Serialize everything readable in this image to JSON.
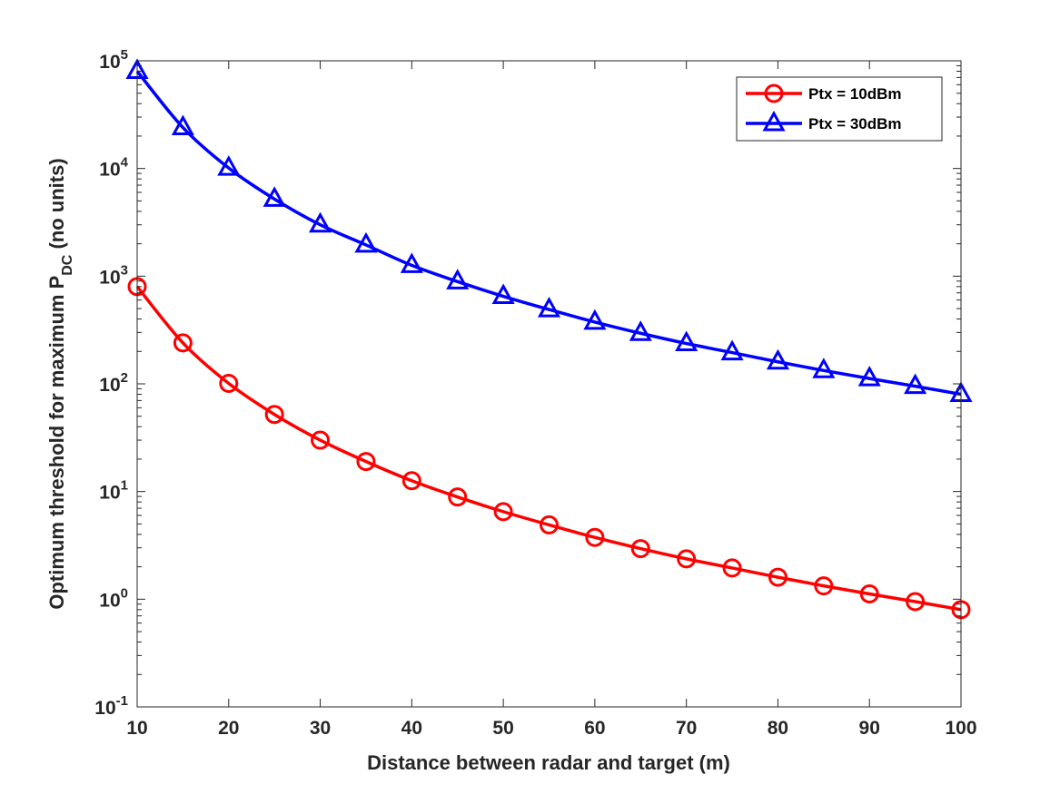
{
  "chart_data": {
    "type": "line",
    "title": "",
    "xlabel": "Distance between radar and target (m)",
    "ylabel": {
      "main": "Optimum threshold for maximum P",
      "subscript": "DC",
      "suffix": " (no units)"
    },
    "xlim": [
      10,
      100
    ],
    "ylim": [
      0.1,
      100000
    ],
    "yscale": "log",
    "grid": false,
    "legend_position": "top-right",
    "xticks": [
      10,
      20,
      30,
      40,
      50,
      60,
      70,
      80,
      90,
      100
    ],
    "xtick_labels": [
      "10",
      "20",
      "30",
      "40",
      "50",
      "60",
      "70",
      "80",
      "90",
      "100"
    ],
    "yticks": [
      {
        "value": 0.1,
        "base": "10",
        "exp": "-1"
      },
      {
        "value": 1,
        "base": "10",
        "exp": "0"
      },
      {
        "value": 10,
        "base": "10",
        "exp": "1"
      },
      {
        "value": 100,
        "base": "10",
        "exp": "2"
      },
      {
        "value": 1000,
        "base": "10",
        "exp": "3"
      },
      {
        "value": 10000,
        "base": "10",
        "exp": "4"
      },
      {
        "value": 100000,
        "base": "10",
        "exp": "5"
      }
    ],
    "x": [
      10,
      15,
      20,
      25,
      30,
      35,
      40,
      45,
      50,
      55,
      60,
      65,
      70,
      75,
      80,
      85,
      90,
      95,
      100
    ],
    "series": [
      {
        "name": "Ptx = 10dBm",
        "color": "#ff0000",
        "marker": "circle",
        "values": [
          800,
          240,
          101,
          52,
          30,
          19,
          12.6,
          8.9,
          6.5,
          4.9,
          3.75,
          2.95,
          2.37,
          1.95,
          1.6,
          1.33,
          1.12,
          0.95,
          0.8
        ]
      },
      {
        "name": "Ptx = 30dBm",
        "color": "#0000ff",
        "marker": "triangle",
        "values": [
          80000,
          24000,
          10100,
          5200,
          3000,
          1950,
          1260,
          890,
          650,
          490,
          375,
          295,
          237,
          195,
          160,
          133,
          112,
          95,
          80
        ]
      }
    ]
  }
}
